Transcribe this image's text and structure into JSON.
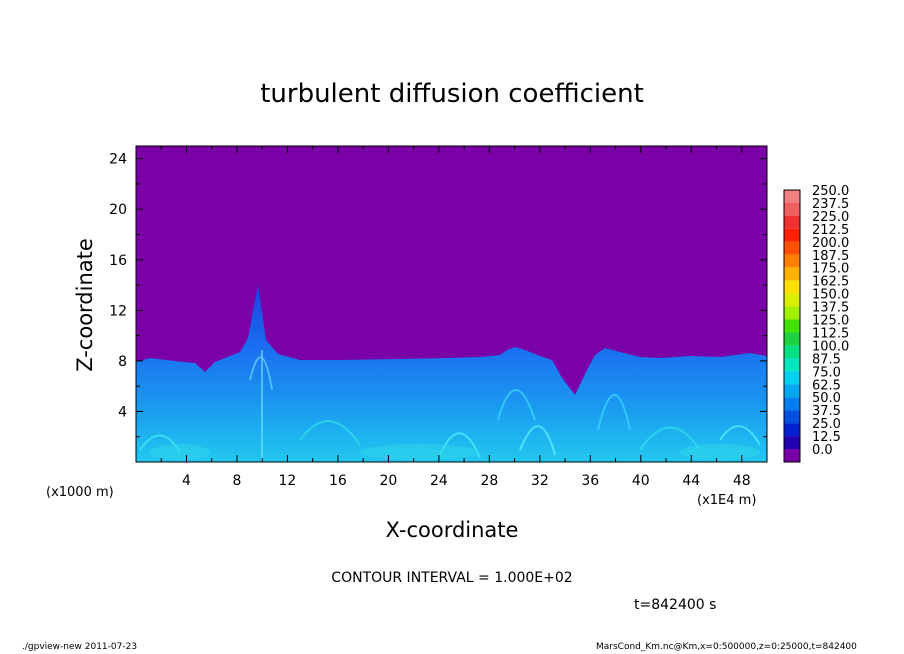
{
  "chart_data": {
    "type": "heatmap",
    "title": "turbulent diffusion coefficient",
    "xlabel": "X-coordinate",
    "ylabel": "Z-coordinate",
    "x_unit_left": "(x1000 m)",
    "x_unit_right": "(x1E4 m)",
    "xlim": [
      0,
      50
    ],
    "ylim": [
      0,
      25
    ],
    "x_ticks": [
      "4",
      "8",
      "12",
      "16",
      "20",
      "24",
      "28",
      "32",
      "36",
      "40",
      "44",
      "48"
    ],
    "y_ticks": [
      "4",
      "8",
      "12",
      "16",
      "20",
      "24"
    ],
    "colorbar": {
      "labels": [
        "250.0",
        "237.5",
        "225.0",
        "212.5",
        "200.0",
        "187.5",
        "175.0",
        "162.5",
        "150.0",
        "137.5",
        "125.0",
        "112.5",
        "100.0",
        "87.5",
        "75.0",
        "62.5",
        "50.0",
        "37.5",
        "25.0",
        "12.5",
        "0.0"
      ],
      "colors": [
        "#f08080",
        "#f06060",
        "#f03030",
        "#ff2000",
        "#ff5000",
        "#ff8000",
        "#ffb000",
        "#ffe000",
        "#d8f000",
        "#a0f000",
        "#40e000",
        "#20d040",
        "#00e080",
        "#00e8c0",
        "#00d0f0",
        "#00a8f0",
        "#0080f0",
        "#0050e0",
        "#0020d0",
        "#2000b0",
        "#7a00a8"
      ]
    },
    "contour_interval": "CONTOUR INTERVAL = 1.000E+02",
    "time_label": "t=842400 s",
    "background_color": "#7a00a8"
  },
  "footer": {
    "left": "./gpview-new   2011-07-23",
    "right": "MarsCond_Km.nc@Km,x=0:500000,z=0:25000,t=842400"
  }
}
